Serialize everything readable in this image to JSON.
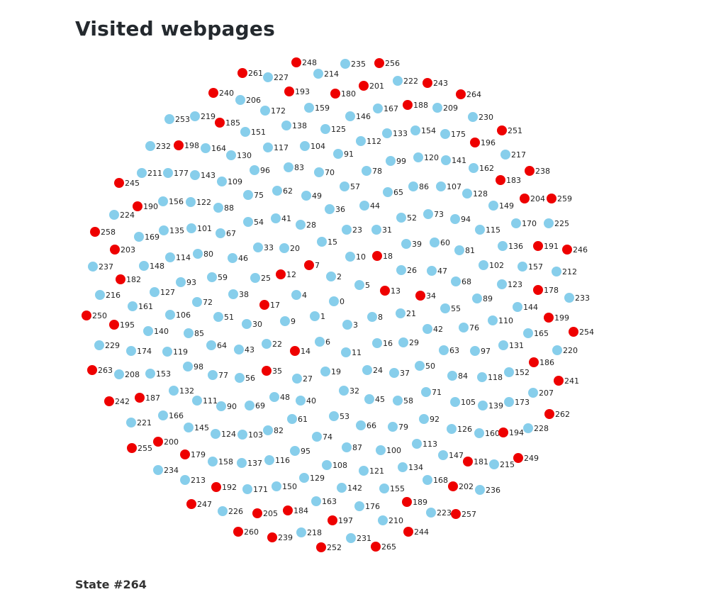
{
  "title": "Visited webpages",
  "state_label": "State #264",
  "colors": {
    "visited": "#ee0000",
    "unvisited": "#87ceeb"
  },
  "graph": {
    "nodes": [
      {
        "id": "0",
        "visited": false
      },
      {
        "id": "1",
        "visited": false
      },
      {
        "id": "2",
        "visited": false
      },
      {
        "id": "3",
        "visited": false
      },
      {
        "id": "4",
        "visited": false
      },
      {
        "id": "5",
        "visited": false
      },
      {
        "id": "6",
        "visited": false
      },
      {
        "id": "7",
        "visited": true
      },
      {
        "id": "8",
        "visited": false
      },
      {
        "id": "9",
        "visited": false
      },
      {
        "id": "10",
        "visited": false
      },
      {
        "id": "11",
        "visited": false
      },
      {
        "id": "12",
        "visited": true
      },
      {
        "id": "13",
        "visited": true
      },
      {
        "id": "14",
        "visited": true
      },
      {
        "id": "15",
        "visited": false
      },
      {
        "id": "16",
        "visited": false
      },
      {
        "id": "17",
        "visited": true
      },
      {
        "id": "18",
        "visited": true
      },
      {
        "id": "19",
        "visited": false
      },
      {
        "id": "20",
        "visited": false
      },
      {
        "id": "21",
        "visited": false
      },
      {
        "id": "22",
        "visited": false
      },
      {
        "id": "23",
        "visited": false
      },
      {
        "id": "24",
        "visited": false
      },
      {
        "id": "25",
        "visited": false
      },
      {
        "id": "26",
        "visited": false
      },
      {
        "id": "27",
        "visited": false
      },
      {
        "id": "28",
        "visited": false
      },
      {
        "id": "29",
        "visited": false
      },
      {
        "id": "30",
        "visited": false
      },
      {
        "id": "31",
        "visited": false
      },
      {
        "id": "32",
        "visited": false
      },
      {
        "id": "33",
        "visited": false
      },
      {
        "id": "34",
        "visited": true
      },
      {
        "id": "35",
        "visited": true
      },
      {
        "id": "36",
        "visited": false
      },
      {
        "id": "37",
        "visited": false
      },
      {
        "id": "38",
        "visited": false
      },
      {
        "id": "39",
        "visited": false
      },
      {
        "id": "40",
        "visited": false
      },
      {
        "id": "41",
        "visited": false
      },
      {
        "id": "42",
        "visited": false
      },
      {
        "id": "43",
        "visited": false
      },
      {
        "id": "44",
        "visited": false
      },
      {
        "id": "45",
        "visited": false
      },
      {
        "id": "46",
        "visited": false
      },
      {
        "id": "47",
        "visited": false
      },
      {
        "id": "48",
        "visited": false
      },
      {
        "id": "49",
        "visited": false
      },
      {
        "id": "50",
        "visited": false
      },
      {
        "id": "51",
        "visited": false
      },
      {
        "id": "52",
        "visited": false
      },
      {
        "id": "53",
        "visited": false
      },
      {
        "id": "54",
        "visited": false
      },
      {
        "id": "55",
        "visited": false
      },
      {
        "id": "56",
        "visited": false
      },
      {
        "id": "57",
        "visited": false
      },
      {
        "id": "58",
        "visited": false
      },
      {
        "id": "59",
        "visited": false
      },
      {
        "id": "60",
        "visited": false
      },
      {
        "id": "61",
        "visited": false
      },
      {
        "id": "62",
        "visited": false
      },
      {
        "id": "63",
        "visited": false
      },
      {
        "id": "64",
        "visited": false
      },
      {
        "id": "65",
        "visited": false
      },
      {
        "id": "66",
        "visited": false
      },
      {
        "id": "67",
        "visited": false
      },
      {
        "id": "68",
        "visited": false
      },
      {
        "id": "69",
        "visited": false
      },
      {
        "id": "70",
        "visited": false
      },
      {
        "id": "71",
        "visited": false
      },
      {
        "id": "72",
        "visited": false
      },
      {
        "id": "73",
        "visited": false
      },
      {
        "id": "74",
        "visited": false
      },
      {
        "id": "75",
        "visited": false
      },
      {
        "id": "76",
        "visited": false
      },
      {
        "id": "77",
        "visited": false
      },
      {
        "id": "78",
        "visited": false
      },
      {
        "id": "79",
        "visited": false
      },
      {
        "id": "80",
        "visited": false
      },
      {
        "id": "81",
        "visited": false
      },
      {
        "id": "82",
        "visited": false
      },
      {
        "id": "83",
        "visited": false
      },
      {
        "id": "84",
        "visited": false
      },
      {
        "id": "85",
        "visited": false
      },
      {
        "id": "86",
        "visited": false
      },
      {
        "id": "87",
        "visited": false
      },
      {
        "id": "88",
        "visited": false
      },
      {
        "id": "89",
        "visited": false
      },
      {
        "id": "90",
        "visited": false
      },
      {
        "id": "91",
        "visited": false
      },
      {
        "id": "92",
        "visited": false
      },
      {
        "id": "93",
        "visited": false
      },
      {
        "id": "94",
        "visited": false
      },
      {
        "id": "95",
        "visited": false
      },
      {
        "id": "96",
        "visited": false
      },
      {
        "id": "97",
        "visited": false
      },
      {
        "id": "98",
        "visited": false
      },
      {
        "id": "99",
        "visited": false
      },
      {
        "id": "100",
        "visited": false
      },
      {
        "id": "101",
        "visited": false
      },
      {
        "id": "102",
        "visited": false
      },
      {
        "id": "103",
        "visited": false
      },
      {
        "id": "104",
        "visited": false
      },
      {
        "id": "105",
        "visited": false
      },
      {
        "id": "106",
        "visited": false
      },
      {
        "id": "107",
        "visited": false
      },
      {
        "id": "108",
        "visited": false
      },
      {
        "id": "109",
        "visited": false
      },
      {
        "id": "110",
        "visited": false
      },
      {
        "id": "111",
        "visited": false
      },
      {
        "id": "112",
        "visited": false
      },
      {
        "id": "113",
        "visited": false
      },
      {
        "id": "114",
        "visited": false
      },
      {
        "id": "115",
        "visited": false
      },
      {
        "id": "116",
        "visited": false
      },
      {
        "id": "117",
        "visited": false
      },
      {
        "id": "118",
        "visited": false
      },
      {
        "id": "119",
        "visited": false
      },
      {
        "id": "120",
        "visited": false
      },
      {
        "id": "121",
        "visited": false
      },
      {
        "id": "122",
        "visited": false
      },
      {
        "id": "123",
        "visited": false
      },
      {
        "id": "124",
        "visited": false
      },
      {
        "id": "125",
        "visited": false
      },
      {
        "id": "126",
        "visited": false
      },
      {
        "id": "127",
        "visited": false
      },
      {
        "id": "128",
        "visited": false
      },
      {
        "id": "129",
        "visited": false
      },
      {
        "id": "130",
        "visited": false
      },
      {
        "id": "131",
        "visited": false
      },
      {
        "id": "132",
        "visited": false
      },
      {
        "id": "133",
        "visited": false
      },
      {
        "id": "134",
        "visited": false
      },
      {
        "id": "135",
        "visited": false
      },
      {
        "id": "136",
        "visited": false
      },
      {
        "id": "137",
        "visited": false
      },
      {
        "id": "138",
        "visited": false
      },
      {
        "id": "139",
        "visited": false
      },
      {
        "id": "140",
        "visited": false
      },
      {
        "id": "141",
        "visited": false
      },
      {
        "id": "142",
        "visited": false
      },
      {
        "id": "143",
        "visited": false
      },
      {
        "id": "144",
        "visited": false
      },
      {
        "id": "145",
        "visited": false
      },
      {
        "id": "146",
        "visited": false
      },
      {
        "id": "147",
        "visited": false
      },
      {
        "id": "148",
        "visited": false
      },
      {
        "id": "149",
        "visited": false
      },
      {
        "id": "150",
        "visited": false
      },
      {
        "id": "151",
        "visited": false
      },
      {
        "id": "152",
        "visited": false
      },
      {
        "id": "153",
        "visited": false
      },
      {
        "id": "154",
        "visited": false
      },
      {
        "id": "155",
        "visited": false
      },
      {
        "id": "156",
        "visited": false
      },
      {
        "id": "157",
        "visited": false
      },
      {
        "id": "158",
        "visited": false
      },
      {
        "id": "159",
        "visited": false
      },
      {
        "id": "160",
        "visited": false
      },
      {
        "id": "161",
        "visited": false
      },
      {
        "id": "162",
        "visited": false
      },
      {
        "id": "163",
        "visited": false
      },
      {
        "id": "164",
        "visited": false
      },
      {
        "id": "165",
        "visited": false
      },
      {
        "id": "166",
        "visited": false
      },
      {
        "id": "167",
        "visited": false
      },
      {
        "id": "168",
        "visited": false
      },
      {
        "id": "169",
        "visited": false
      },
      {
        "id": "170",
        "visited": false
      },
      {
        "id": "171",
        "visited": false
      },
      {
        "id": "172",
        "visited": false
      },
      {
        "id": "173",
        "visited": false
      },
      {
        "id": "174",
        "visited": false
      },
      {
        "id": "175",
        "visited": false
      },
      {
        "id": "176",
        "visited": false
      },
      {
        "id": "177",
        "visited": false
      },
      {
        "id": "178",
        "visited": true
      },
      {
        "id": "179",
        "visited": true
      },
      {
        "id": "180",
        "visited": true
      },
      {
        "id": "181",
        "visited": true
      },
      {
        "id": "182",
        "visited": true
      },
      {
        "id": "183",
        "visited": true
      },
      {
        "id": "184",
        "visited": true
      },
      {
        "id": "185",
        "visited": true
      },
      {
        "id": "186",
        "visited": true
      },
      {
        "id": "187",
        "visited": true
      },
      {
        "id": "188",
        "visited": true
      },
      {
        "id": "189",
        "visited": true
      },
      {
        "id": "190",
        "visited": true
      },
      {
        "id": "191",
        "visited": true
      },
      {
        "id": "192",
        "visited": true
      },
      {
        "id": "193",
        "visited": true
      },
      {
        "id": "194",
        "visited": true
      },
      {
        "id": "195",
        "visited": true
      },
      {
        "id": "196",
        "visited": true
      },
      {
        "id": "197",
        "visited": true
      },
      {
        "id": "198",
        "visited": true
      },
      {
        "id": "199",
        "visited": true
      },
      {
        "id": "200",
        "visited": true
      },
      {
        "id": "201",
        "visited": true
      },
      {
        "id": "202",
        "visited": true
      },
      {
        "id": "203",
        "visited": true
      },
      {
        "id": "204",
        "visited": true
      },
      {
        "id": "205",
        "visited": true
      },
      {
        "id": "206",
        "visited": false
      },
      {
        "id": "207",
        "visited": false
      },
      {
        "id": "208",
        "visited": false
      },
      {
        "id": "209",
        "visited": false
      },
      {
        "id": "210",
        "visited": false
      },
      {
        "id": "211",
        "visited": false
      },
      {
        "id": "212",
        "visited": false
      },
      {
        "id": "213",
        "visited": false
      },
      {
        "id": "214",
        "visited": false
      },
      {
        "id": "215",
        "visited": false
      },
      {
        "id": "216",
        "visited": false
      },
      {
        "id": "217",
        "visited": false
      },
      {
        "id": "218",
        "visited": false
      },
      {
        "id": "219",
        "visited": false
      },
      {
        "id": "220",
        "visited": false
      },
      {
        "id": "221",
        "visited": false
      },
      {
        "id": "222",
        "visited": false
      },
      {
        "id": "223",
        "visited": false
      },
      {
        "id": "224",
        "visited": false
      },
      {
        "id": "225",
        "visited": false
      },
      {
        "id": "226",
        "visited": false
      },
      {
        "id": "227",
        "visited": false
      },
      {
        "id": "228",
        "visited": false
      },
      {
        "id": "229",
        "visited": false
      },
      {
        "id": "230",
        "visited": false
      },
      {
        "id": "231",
        "visited": false
      },
      {
        "id": "232",
        "visited": false
      },
      {
        "id": "233",
        "visited": false
      },
      {
        "id": "234",
        "visited": false
      },
      {
        "id": "235",
        "visited": false
      },
      {
        "id": "236",
        "visited": false
      },
      {
        "id": "237",
        "visited": false
      },
      {
        "id": "238",
        "visited": true
      },
      {
        "id": "239",
        "visited": true
      },
      {
        "id": "240",
        "visited": true
      },
      {
        "id": "241",
        "visited": true
      },
      {
        "id": "242",
        "visited": true
      },
      {
        "id": "243",
        "visited": true
      },
      {
        "id": "244",
        "visited": true
      },
      {
        "id": "245",
        "visited": true
      },
      {
        "id": "246",
        "visited": true
      },
      {
        "id": "247",
        "visited": true
      },
      {
        "id": "248",
        "visited": true
      },
      {
        "id": "249",
        "visited": true
      },
      {
        "id": "250",
        "visited": true
      },
      {
        "id": "251",
        "visited": true
      },
      {
        "id": "252",
        "visited": true
      },
      {
        "id": "253",
        "visited": false
      },
      {
        "id": "254",
        "visited": true
      },
      {
        "id": "255",
        "visited": true
      },
      {
        "id": "256",
        "visited": true
      },
      {
        "id": "257",
        "visited": true
      },
      {
        "id": "258",
        "visited": true
      },
      {
        "id": "259",
        "visited": true
      },
      {
        "id": "260",
        "visited": true
      },
      {
        "id": "261",
        "visited": true
      },
      {
        "id": "262",
        "visited": true
      },
      {
        "id": "263",
        "visited": true
      },
      {
        "id": "264",
        "visited": true
      },
      {
        "id": "265",
        "visited": true
      }
    ]
  }
}
